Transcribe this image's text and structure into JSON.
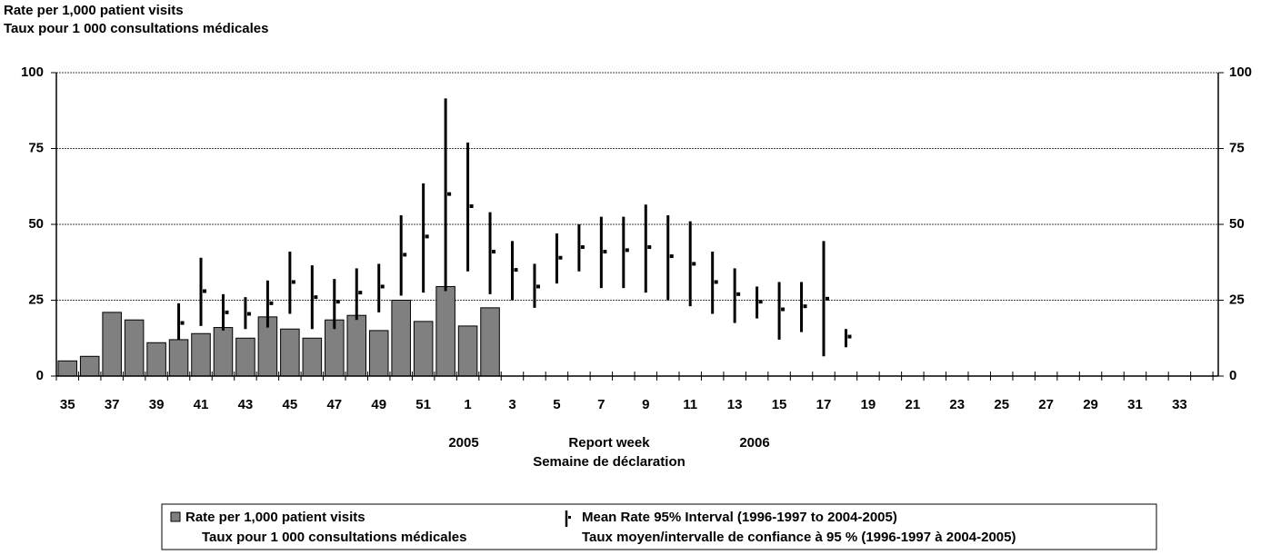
{
  "chart_data": {
    "type": "bar_errorbar",
    "y_label": [
      "Rate per 1,000 patient visits",
      "Taux pour 1 000 consultations médicales"
    ],
    "categories": [
      "35",
      null,
      "37",
      null,
      "39",
      null,
      "41",
      null,
      "43",
      null,
      "45",
      null,
      "47",
      null,
      "49",
      null,
      "51",
      null,
      "1",
      null,
      "3",
      null,
      "5",
      null,
      "7",
      null,
      "9",
      null,
      "11",
      null,
      "13",
      null,
      "15",
      null,
      "17",
      null,
      "19",
      null,
      "21",
      null,
      "23",
      null,
      "25",
      null,
      "27",
      null,
      "29",
      null,
      "31",
      null,
      "33",
      null
    ],
    "annotations": [
      "2005",
      "Report week",
      "2006",
      "Semaine de déclaration"
    ],
    "ylim": [
      0,
      100
    ],
    "yticks": [
      0,
      25,
      50,
      75,
      100
    ],
    "y2lim": [
      0,
      100
    ],
    "y2ticks": [
      0,
      25,
      50,
      75,
      100
    ],
    "grid": true,
    "series": [
      {
        "name": [
          "Rate per 1,000 patient visits",
          "Taux pour 1 000 consultations médicales"
        ],
        "color": "#808080",
        "values": [
          5,
          6.5,
          21,
          18.5,
          11,
          12,
          14,
          16,
          12.5,
          19.5,
          15.5,
          12.5,
          18.5,
          20,
          15,
          25,
          18,
          29.5,
          16.5,
          22.5,
          null,
          null,
          null,
          null,
          null,
          null,
          null,
          null,
          null,
          null,
          null,
          null,
          null,
          null,
          null,
          null,
          null,
          null,
          null,
          null,
          null,
          null,
          null,
          null,
          null,
          null,
          null,
          null,
          null,
          null,
          null,
          null
        ]
      },
      {
        "name": [
          "Mean Rate 95% Interval (1996-1997 to 2004-2005)",
          "Taux moyen/intervalle de confiance à 95 % (1996-1997 à 2004-2005)"
        ],
        "color": "#000000",
        "values": [
          null,
          null,
          null,
          null,
          null,
          17.5,
          28,
          21,
          20.5,
          24,
          31,
          26,
          24.5,
          27.5,
          29.5,
          40,
          46,
          60,
          56,
          41,
          35,
          29.5,
          39,
          42.5,
          41,
          41.5,
          42.5,
          39.5,
          37,
          31,
          27,
          24.5,
          22,
          23,
          25.5,
          13,
          null,
          null,
          null,
          null,
          null,
          null,
          null,
          null,
          null,
          null,
          null,
          null,
          null,
          null,
          null,
          null
        ],
        "low": [
          null,
          null,
          null,
          null,
          null,
          12,
          16.5,
          15,
          15.5,
          16,
          20.5,
          15.5,
          15.5,
          18.5,
          21,
          26.5,
          27.5,
          28,
          34.5,
          27,
          25,
          22.5,
          30.5,
          34.5,
          29,
          29,
          27.5,
          25,
          23,
          20.5,
          17.5,
          19,
          12,
          14.5,
          6.5,
          9.5,
          null,
          null,
          null,
          null,
          null,
          null,
          null,
          null,
          null,
          null,
          null,
          null,
          null,
          null,
          null,
          null
        ],
        "high": [
          null,
          null,
          null,
          null,
          null,
          24,
          39,
          27,
          26,
          31.5,
          41,
          36.5,
          32,
          35.5,
          37,
          53,
          63.5,
          91.5,
          77,
          54,
          44.5,
          37,
          47,
          50,
          52.5,
          52.5,
          56.5,
          53,
          51,
          41,
          35.5,
          29.5,
          31,
          31,
          44.5,
          15.5,
          null,
          null,
          null,
          null,
          null,
          null,
          null,
          null,
          null,
          null,
          null,
          null,
          null,
          null,
          null,
          null
        ]
      }
    ]
  }
}
